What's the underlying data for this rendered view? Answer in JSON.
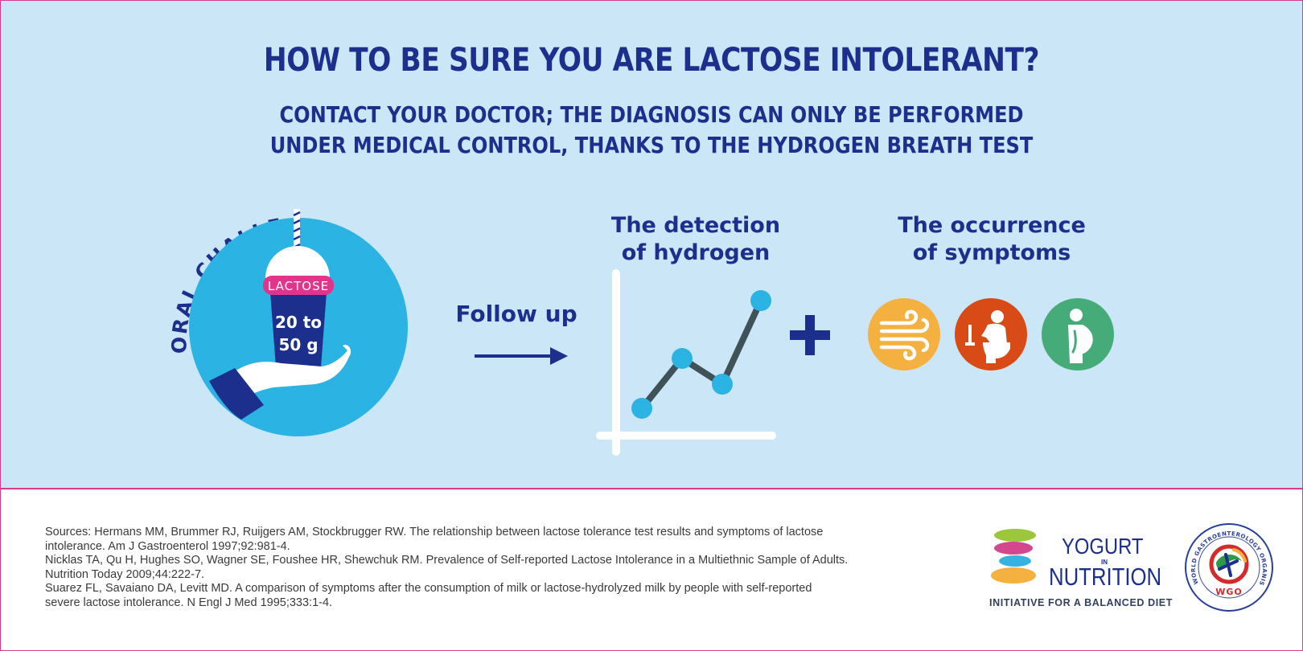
{
  "title": "HOW TO BE SURE YOU ARE LACTOSE INTOLERANT?",
  "subtitle": {
    "line1": "CONTACT YOUR DOCTOR; THE DIAGNOSIS CAN ONLY BE PERFORMED",
    "line2": "UNDER MEDICAL CONTROL, THANKS TO THE HYDROGEN BREATH TEST"
  },
  "oral_challenge": {
    "arc_text": "ORAL CHALLENGE",
    "cup_label": "LACTOSE",
    "dose_line1": "20 to",
    "dose_line2": "50 g"
  },
  "follow_up": "Follow up",
  "detection": {
    "line1": "The detection",
    "line2": "of hydrogen"
  },
  "symptoms": {
    "line1": "The occurrence",
    "line2": "of symptoms",
    "icons": [
      {
        "name": "wind-icon",
        "color": "#f5b13f"
      },
      {
        "name": "toilet-icon",
        "color": "#d84b17"
      },
      {
        "name": "bloating-icon",
        "color": "#45ab78"
      }
    ]
  },
  "plus_sign": "+",
  "colors": {
    "dark_blue": "#1c2f8c",
    "light_bg": "#cbe6f6",
    "cyan": "#2bb3e4",
    "magenta": "#d9398e"
  },
  "sources": [
    "Sources: Hermans MM, Brummer RJ, Ruijgers AM, Stockbrugger RW. The relationship between lactose tolerance test results and symptoms of lactose",
    "intolerance. Am J Gastroenterol 1997;92:981-4.",
    "Nicklas TA, Qu H, Hughes SO, Wagner SE, Foushee HR, Shewchuk RM. Prevalence of Self-reported Lactose Intolerance in a Multiethnic Sample of Adults.",
    "Nutrition Today 2009;44:222-7.",
    "Suarez FL, Savaiano DA, Levitt MD. A comparison of symptoms after the consumption of milk or lactose-hydrolyzed milk by people with self-reported",
    "severe lactose intolerance. N Engl J Med 1995;333:1-4."
  ],
  "yogurt_logo": {
    "line1": "YOGURT",
    "in": "IN",
    "line2": "NUTRITION",
    "tagline": "INITIATIVE FOR A BALANCED DIET"
  },
  "wgo_logo": {
    "ring_text": "WORLD GASTROENTEROLOGY ORGANISATION",
    "short": "WGO"
  }
}
